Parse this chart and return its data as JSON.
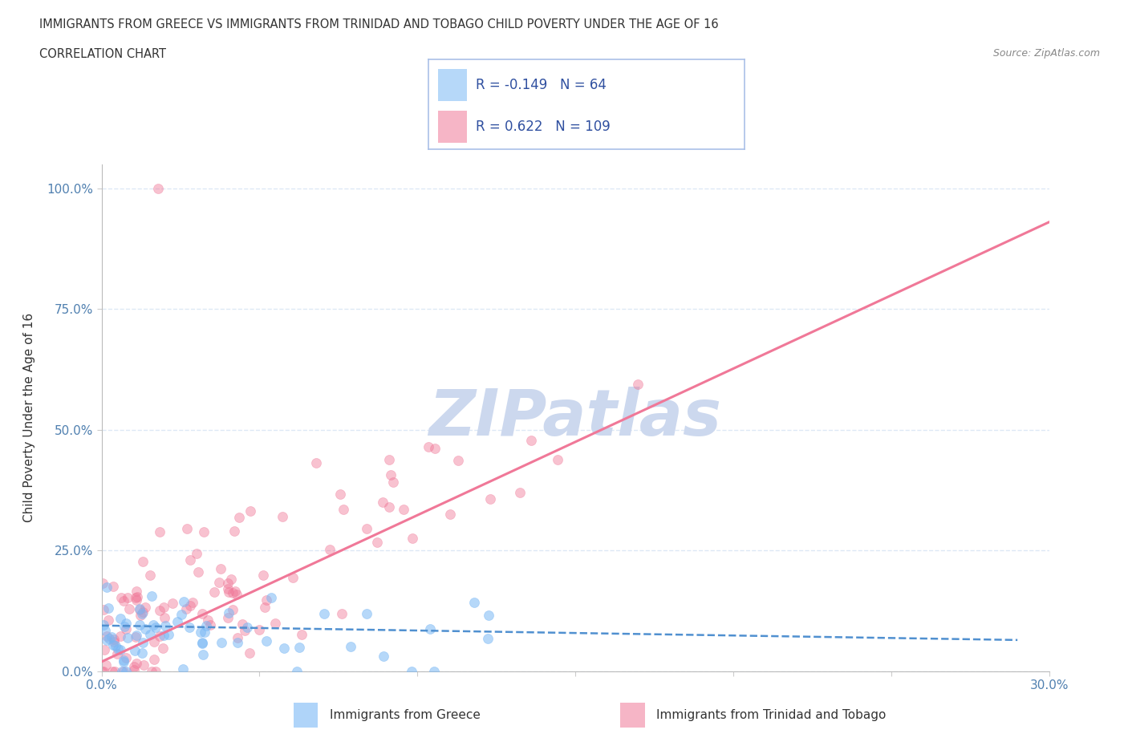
{
  "title": "IMMIGRANTS FROM GREECE VS IMMIGRANTS FROM TRINIDAD AND TOBAGO CHILD POVERTY UNDER THE AGE OF 16",
  "subtitle": "CORRELATION CHART",
  "source": "Source: ZipAtlas.com",
  "ylabel": "Child Poverty Under the Age of 16",
  "xlim": [
    0.0,
    0.3
  ],
  "ylim": [
    0.0,
    1.05
  ],
  "yticks": [
    0.0,
    0.25,
    0.5,
    0.75,
    1.0
  ],
  "ytick_labels": [
    "0.0%",
    "25.0%",
    "50.0%",
    "75.0%",
    "100.0%"
  ],
  "legend_entries": [
    {
      "label": "Immigrants from Greece",
      "R": "-0.149",
      "N": "64"
    },
    {
      "label": "Immigrants from Trinidad and Tobago",
      "R": "0.622",
      "N": "109"
    }
  ],
  "watermark": "ZIPatlas",
  "watermark_color": "#ccd8ee",
  "greece_color": "#7ab8f5",
  "trinidad_color": "#f07898",
  "greece_line_color": "#5090d0",
  "trinidad_line_color": "#f07898",
  "title_color": "#333333",
  "axis_label_color": "#333333",
  "tick_color": "#5080b0",
  "grid_color": "#dde8f5",
  "legend_text_color": "#3050a0",
  "legend_box_color": "#aac0e8",
  "source_color": "#888888",
  "bottom_label_color": "#333333"
}
